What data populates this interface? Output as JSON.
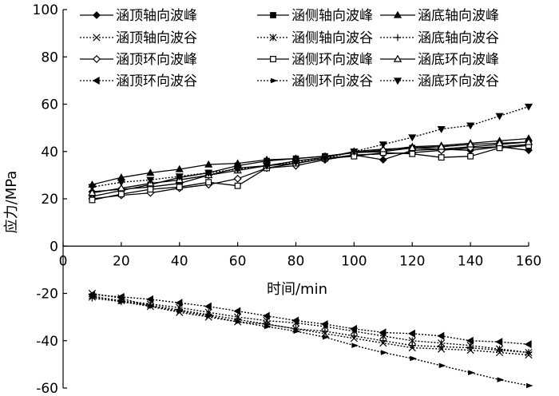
{
  "chart_data": {
    "type": "line",
    "xlabel": "时间/min",
    "ylabel": "应力/MPa",
    "xlim": [
      0,
      160
    ],
    "ylim": [
      -60,
      100
    ],
    "xticks": [
      0,
      20,
      40,
      60,
      80,
      100,
      120,
      140,
      160
    ],
    "yticks": [
      100,
      80,
      60,
      40,
      20,
      0,
      -20,
      -40,
      -60
    ],
    "grid": false,
    "legend_position": "top",
    "x": [
      10,
      20,
      30,
      40,
      50,
      60,
      70,
      80,
      90,
      100,
      110,
      120,
      130,
      140,
      150,
      160
    ],
    "series": [
      {
        "name": "涵顶轴向波峰",
        "marker": "diamond-filled",
        "dash": "solid",
        "values": [
          23,
          24,
          25,
          26.5,
          30,
          33,
          34,
          35,
          37,
          38.5,
          36.5,
          40.5,
          41,
          40.5,
          42,
          40.5
        ]
      },
      {
        "name": "涵侧轴向波峰",
        "marker": "square-filled",
        "dash": "solid",
        "values": [
          21,
          23.5,
          26,
          29,
          31,
          34,
          36,
          37,
          38,
          39.5,
          40,
          41.5,
          41,
          42,
          43,
          44
        ]
      },
      {
        "name": "涵底轴向波峰",
        "marker": "triangle-filled",
        "dash": "solid",
        "values": [
          26,
          29,
          31,
          32.5,
          34.5,
          35,
          36.5,
          37,
          38,
          39.5,
          40.5,
          42,
          42.5,
          43.5,
          44.5,
          45.5
        ]
      },
      {
        "name": "涵顶轴向波谷",
        "marker": "x",
        "dash": "dotted",
        "values": [
          -20,
          -22,
          -25.5,
          -28,
          -30,
          -32,
          -33,
          -35,
          -37,
          -39,
          -41,
          -43,
          -43.5,
          -44,
          -45,
          -46
        ]
      },
      {
        "name": "涵侧轴向波谷",
        "marker": "asterisk",
        "dash": "dotted",
        "values": [
          -21.5,
          -23,
          -24.5,
          -26,
          -28,
          -30,
          -31.5,
          -32.5,
          -34,
          -36,
          -38,
          -40,
          -41,
          -42,
          -43.5,
          -45
        ]
      },
      {
        "name": "涵底轴向波谷",
        "marker": "plus",
        "dash": "dotted",
        "values": [
          -22,
          -23.5,
          -25,
          -27,
          -29,
          -31,
          -33,
          -35,
          -36,
          -38,
          -40,
          -42,
          -42.5,
          -43,
          -44,
          -45
        ]
      },
      {
        "name": "涵顶环向波峰",
        "marker": "diamond-open",
        "dash": "solid",
        "values": [
          20,
          21.5,
          22.5,
          24.5,
          26,
          28.5,
          33,
          34,
          36.5,
          38.5,
          39,
          39.5,
          40.5,
          41.5,
          42,
          43
        ]
      },
      {
        "name": "涵侧环向波峰",
        "marker": "square-open",
        "dash": "solid",
        "values": [
          19.5,
          22,
          24,
          25,
          27,
          25.5,
          33,
          35,
          37,
          38,
          39.5,
          39,
          37.5,
          38,
          41.5,
          42.5
        ]
      },
      {
        "name": "涵底环向波峰",
        "marker": "triangle-open",
        "dash": "solid",
        "values": [
          22.5,
          24.5,
          26.5,
          28,
          30,
          32,
          34,
          36,
          37.5,
          40,
          41,
          41.5,
          42,
          43,
          43.5,
          44
        ]
      },
      {
        "name": "涵顶环向波谷",
        "marker": "triangle-left",
        "dash": "dotted",
        "values": [
          -20.5,
          -21.5,
          -22.5,
          -24,
          -25.5,
          -27.5,
          -29.5,
          -31.5,
          -33,
          -35,
          -36.5,
          -37,
          -38,
          -40,
          -40.5,
          -41.5
        ]
      },
      {
        "name": "涵侧环向波谷",
        "marker": "triangle-right",
        "dash": "dotted",
        "values": [
          -21,
          -23.5,
          -25.5,
          -27.5,
          -29.5,
          -32,
          -34,
          -36,
          -38.5,
          -42,
          -45,
          -47.5,
          -50.5,
          -53.5,
          -56.5,
          -59
        ]
      },
      {
        "name": "涵底环向波谷",
        "marker": "triangle-down",
        "dash": "dotted",
        "values": [
          25,
          27,
          28,
          29.5,
          31,
          32.5,
          34,
          35.5,
          37,
          40,
          43,
          46,
          49.5,
          51,
          55,
          59
        ]
      }
    ]
  }
}
